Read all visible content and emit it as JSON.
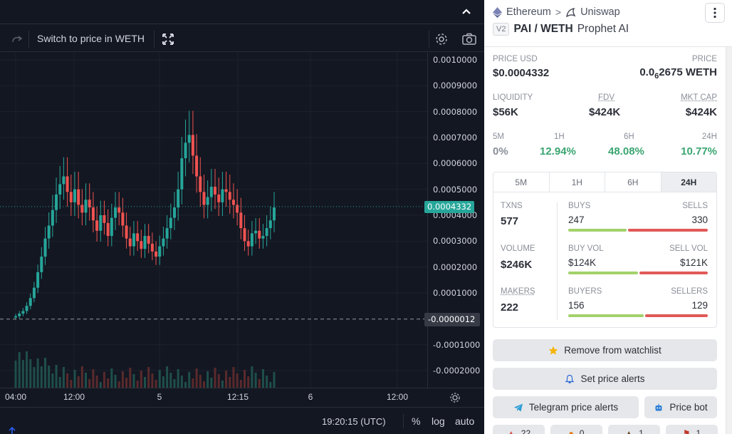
{
  "chart": {
    "toolbar": {
      "switch_label": "Switch to price in WETH"
    },
    "y_ticks": [
      "0.0010000",
      "0.0009000",
      "0.0008000",
      "0.0007000",
      "0.0006000",
      "0.0005000",
      "0.0004000",
      "0.0003000",
      "0.0002000",
      "0.0001000",
      "-0.0001000",
      "-0.0002000"
    ],
    "x_ticks": [
      "04:00",
      "12:00",
      "5",
      "12:15",
      "6",
      "12:00"
    ],
    "current_price_label": "0.0004332",
    "zero_label": "-0.0000012",
    "status": {
      "time": "19:20:15 (UTC)",
      "percent": "%",
      "log": "log",
      "auto": "auto"
    },
    "colors": {
      "up": "#26a69a",
      "down": "#ef5350",
      "bg": "#131722"
    }
  },
  "chart_data": {
    "type": "candlestick",
    "y_range": [
      -0.0002,
      0.001
    ],
    "current_price": 0.0004332,
    "close_series": [
      1e-05,
      2e-05,
      3e-05,
      5e-05,
      8e-05,
      0.00012,
      0.00018,
      0.00024,
      0.00031,
      0.00036,
      0.00042,
      0.00048,
      0.00052,
      0.00055,
      0.00049,
      0.00045,
      0.0005,
      0.00044,
      0.00041,
      0.00046,
      0.00043,
      0.00038,
      0.00034,
      0.0004,
      0.00037,
      0.00032,
      0.00039,
      0.00043,
      0.00041,
      0.00036,
      0.00031,
      0.00028,
      0.00033,
      0.0003,
      0.00027,
      0.00032,
      0.00029,
      0.00026,
      0.00024,
      0.00028,
      0.00031,
      0.00035,
      0.00039,
      0.00043,
      0.0005,
      0.00062,
      0.00068,
      0.00071,
      0.00063,
      0.00055,
      0.00049,
      0.00044,
      0.00047,
      0.00051,
      0.00048,
      0.00045,
      0.0005,
      0.00049,
      0.00046,
      0.00044,
      0.00041,
      0.00035,
      0.0003,
      0.00028,
      0.00033,
      0.00034,
      0.00031,
      0.00032,
      0.00035,
      0.00038,
      0.00043
    ]
  },
  "info": {
    "chain": "Ethereum",
    "dex": "Uniswap",
    "version": "V2",
    "pair": "PAI / WETH",
    "name": "Prophet AI",
    "price_usd_label": "PRICE USD",
    "price_usd": "$0.0004332",
    "price_label": "PRICE",
    "price_native_prefix": "0.0",
    "price_native_sub": "6",
    "price_native_rest": "2675 WETH",
    "liquidity_label": "LIQUIDITY",
    "liquidity": "$56K",
    "fdv_label": "FDV",
    "fdv": "$424K",
    "mktcap_label": "MKT CAP",
    "mktcap": "$424K",
    "changes": [
      {
        "label": "5M",
        "value": "0%"
      },
      {
        "label": "1H",
        "value": "12.94%"
      },
      {
        "label": "6H",
        "value": "48.08%"
      },
      {
        "label": "24H",
        "value": "10.77%"
      }
    ],
    "tabs": [
      "5M",
      "1H",
      "6H",
      "24H"
    ],
    "stats": {
      "txns_label": "TXNS",
      "txns": "577",
      "buys_label": "BUYS",
      "buys": "247",
      "sells_label": "SELLS",
      "sells": "330",
      "volume_label": "VOLUME",
      "volume": "$246K",
      "buyvol_label": "BUY VOL",
      "buyvol": "$124K",
      "sellvol_label": "SELL VOL",
      "sellvol": "$121K",
      "makers_label": "MAKERS",
      "makers": "222",
      "buyers_label": "BUYERS",
      "buyers": "156",
      "sellers_label": "SELLERS",
      "sellers": "129"
    },
    "buttons": {
      "watchlist": "Remove from watchlist",
      "alerts": "Set price alerts",
      "telegram": "Telegram price alerts",
      "pricebot": "Price bot"
    },
    "reactions": [
      "22",
      "0",
      "1",
      "1"
    ]
  }
}
